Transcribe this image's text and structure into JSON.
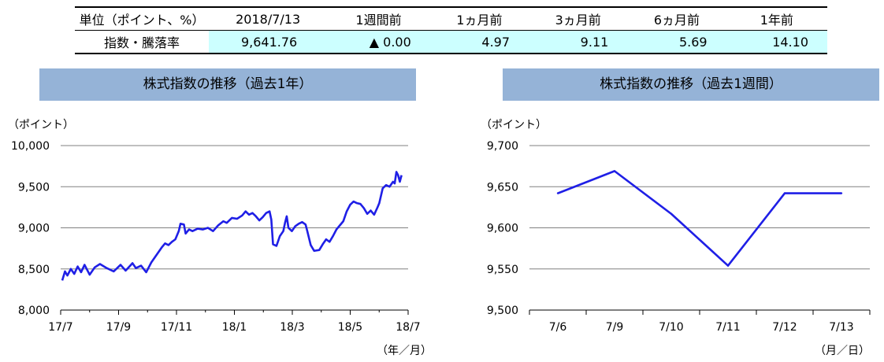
{
  "summary": {
    "headers": [
      "単位（ポイント、%）",
      "2018/7/13",
      "1週間前",
      "1ヵ月前",
      "3ヵ月前",
      "6ヵ月前",
      "1年前"
    ],
    "row_label": "指数・騰落率",
    "values": [
      "9,641.76",
      "▲ 0.00",
      "4.97",
      "9.11",
      "5.69",
      "14.10"
    ]
  },
  "chart_data": [
    {
      "type": "line",
      "title": "株式指数の推移（過去1年）",
      "ylabel": "（ポイント）",
      "xlabel": "（年／月）",
      "ylim": [
        8000,
        10000
      ],
      "yticks": [
        "10,000",
        "9,500",
        "9,000",
        "8,500",
        "8,000"
      ],
      "ytick_values": [
        10000,
        9500,
        9000,
        8500,
        8000
      ],
      "xticks": [
        "17/7",
        "17/9",
        "17/11",
        "18/1",
        "18/3",
        "18/5",
        "18/7"
      ],
      "grid": true,
      "color": "#1f1fe6",
      "series": [
        {
          "points": [
            [
              0.0,
              8360
            ],
            [
              0.08,
              8470
            ],
            [
              0.15,
              8420
            ],
            [
              0.25,
              8500
            ],
            [
              0.35,
              8440
            ],
            [
              0.45,
              8530
            ],
            [
              0.55,
              8460
            ],
            [
              0.65,
              8550
            ],
            [
              0.8,
              8430
            ],
            [
              0.95,
              8520
            ],
            [
              1.1,
              8560
            ],
            [
              1.3,
              8510
            ],
            [
              1.5,
              8470
            ],
            [
              1.7,
              8550
            ],
            [
              1.85,
              8480
            ],
            [
              2.05,
              8570
            ],
            [
              2.15,
              8510
            ],
            [
              2.3,
              8540
            ],
            [
              2.45,
              8460
            ],
            [
              2.6,
              8580
            ],
            [
              2.7,
              8640
            ],
            [
              2.8,
              8700
            ],
            [
              2.9,
              8760
            ],
            [
              3.0,
              8810
            ],
            [
              3.1,
              8790
            ],
            [
              3.2,
              8830
            ],
            [
              3.3,
              8860
            ],
            [
              3.4,
              8960
            ],
            [
              3.45,
              9050
            ],
            [
              3.55,
              9040
            ],
            [
              3.6,
              8930
            ],
            [
              3.7,
              8980
            ],
            [
              3.8,
              8960
            ],
            [
              3.95,
              8990
            ],
            [
              4.1,
              8980
            ],
            [
              4.25,
              9000
            ],
            [
              4.4,
              8960
            ],
            [
              4.55,
              9030
            ],
            [
              4.7,
              9080
            ],
            [
              4.8,
              9060
            ],
            [
              4.95,
              9120
            ],
            [
              5.1,
              9110
            ],
            [
              5.25,
              9150
            ],
            [
              5.35,
              9200
            ],
            [
              5.45,
              9160
            ],
            [
              5.55,
              9180
            ],
            [
              5.65,
              9140
            ],
            [
              5.75,
              9090
            ],
            [
              5.85,
              9130
            ],
            [
              5.95,
              9180
            ],
            [
              6.05,
              9200
            ],
            [
              6.1,
              9100
            ],
            [
              6.15,
              8800
            ],
            [
              6.25,
              8780
            ],
            [
              6.35,
              8900
            ],
            [
              6.45,
              8960
            ],
            [
              6.5,
              9060
            ],
            [
              6.55,
              9140
            ],
            [
              6.6,
              9000
            ],
            [
              6.7,
              8960
            ],
            [
              6.8,
              9020
            ],
            [
              6.9,
              9050
            ],
            [
              7.0,
              9070
            ],
            [
              7.1,
              9040
            ],
            [
              7.15,
              8960
            ],
            [
              7.25,
              8790
            ],
            [
              7.35,
              8720
            ],
            [
              7.5,
              8730
            ],
            [
              7.6,
              8800
            ],
            [
              7.7,
              8860
            ],
            [
              7.8,
              8830
            ],
            [
              7.9,
              8900
            ],
            [
              8.0,
              8980
            ],
            [
              8.1,
              9030
            ],
            [
              8.2,
              9080
            ],
            [
              8.3,
              9200
            ],
            [
              8.4,
              9280
            ],
            [
              8.5,
              9320
            ],
            [
              8.6,
              9300
            ],
            [
              8.7,
              9290
            ],
            [
              8.8,
              9240
            ],
            [
              8.9,
              9170
            ],
            [
              9.0,
              9210
            ],
            [
              9.1,
              9160
            ],
            [
              9.2,
              9250
            ],
            [
              9.25,
              9300
            ],
            [
              9.35,
              9480
            ],
            [
              9.45,
              9520
            ],
            [
              9.55,
              9500
            ],
            [
              9.65,
              9560
            ],
            [
              9.7,
              9540
            ],
            [
              9.75,
              9680
            ],
            [
              9.8,
              9640
            ],
            [
              9.85,
              9560
            ],
            [
              9.9,
              9640
            ]
          ]
        }
      ]
    },
    {
      "type": "line",
      "title": "株式指数の推移（過去1週間）",
      "ylabel": "（ポイント）",
      "xlabel": "（月／日）",
      "ylim": [
        9500,
        9700
      ],
      "yticks": [
        "9,700",
        "9,650",
        "9,600",
        "9,550",
        "9,500"
      ],
      "ytick_values": [
        9700,
        9650,
        9600,
        9550,
        9500
      ],
      "categories": [
        "7/6",
        "7/9",
        "7/10",
        "7/11",
        "7/12",
        "7/13"
      ],
      "grid": true,
      "color": "#1f1fe6",
      "series": [
        {
          "values": [
            9642,
            9669,
            9617,
            9554,
            9642,
            9642
          ]
        }
      ]
    }
  ]
}
